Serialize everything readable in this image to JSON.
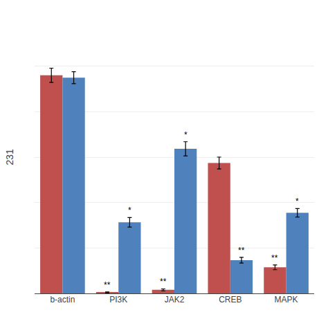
{
  "chart_data": {
    "type": "bar",
    "ylabel": "231",
    "categories": [
      "b-actin",
      "PI3K",
      "JAK2",
      "CREB",
      "MAPK"
    ],
    "series": [
      {
        "color": "#c0504d",
        "values": [
          9.2,
          0.04,
          0.15,
          5.5,
          1.1
        ],
        "errors": [
          0.3,
          0.02,
          0.04,
          0.25,
          0.1
        ],
        "annotations": [
          null,
          "**",
          "**",
          null,
          "**"
        ]
      },
      {
        "color": "#4f81bd",
        "values": [
          9.1,
          3.0,
          6.1,
          1.4,
          3.4
        ],
        "errors": [
          0.25,
          0.2,
          0.3,
          0.12,
          0.18
        ],
        "annotations": [
          null,
          "*",
          "*",
          "**",
          "*"
        ]
      }
    ],
    "ylim": [
      0,
      11.5
    ],
    "yticks": [
      0,
      1.9166666666666667,
      3.8333333333333335,
      5.75,
      7.666666666666667,
      9.583333333333334,
      11.5
    ],
    "grid": true,
    "tick_labels": "x"
  }
}
